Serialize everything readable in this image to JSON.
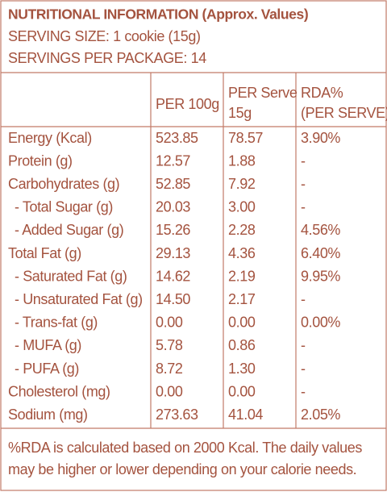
{
  "header": {
    "title": "NUTRITIONAL INFORMATION (Approx. Values)",
    "serving_size": "SERVING SIZE: 1 cookie (15g)",
    "servings_per_package": "SERVINGS PER PACKAGE: 14"
  },
  "table": {
    "columns": [
      "PER 100g",
      [
        "PER Serve",
        "15g"
      ],
      [
        "RDA%",
        "(PER SERVE)"
      ]
    ],
    "rows": [
      [
        "Energy (Kcal)",
        "523.85",
        "78.57",
        "3.90%"
      ],
      [
        "Protein (g)",
        "12.57",
        "1.88",
        "-"
      ],
      [
        "Carbohydrates (g)",
        "52.85",
        "7.92",
        "-"
      ],
      [
        "- Total Sugar (g)",
        "20.03",
        "3.00",
        "-"
      ],
      [
        "- Added Sugar (g)",
        "15.26",
        "2.28",
        "4.56%"
      ],
      [
        "Total Fat (g)",
        "29.13",
        "4.36",
        "6.40%"
      ],
      [
        "- Saturated Fat (g)",
        "14.62",
        "2.19",
        "9.95%"
      ],
      [
        "- Unsaturated Fat (g)",
        "14.50",
        "2.17",
        "-"
      ],
      [
        "- Trans-fat (g)",
        "0.00",
        "0.00",
        "0.00%"
      ],
      [
        "- MUFA (g)",
        "5.78",
        "0.86",
        "-"
      ],
      [
        "- PUFA (g)",
        "8.72",
        "1.30",
        "-"
      ],
      [
        "Cholesterol (mg)",
        "0.00",
        "0.00",
        "-"
      ],
      [
        "Sodium (mg)",
        "273.63",
        "41.04",
        "2.05%"
      ]
    ]
  },
  "footer": [
    "%RDA is calculated based on 2000 Kcal. The daily values",
    "may be higher or lower depending on your calorie needs."
  ]
}
